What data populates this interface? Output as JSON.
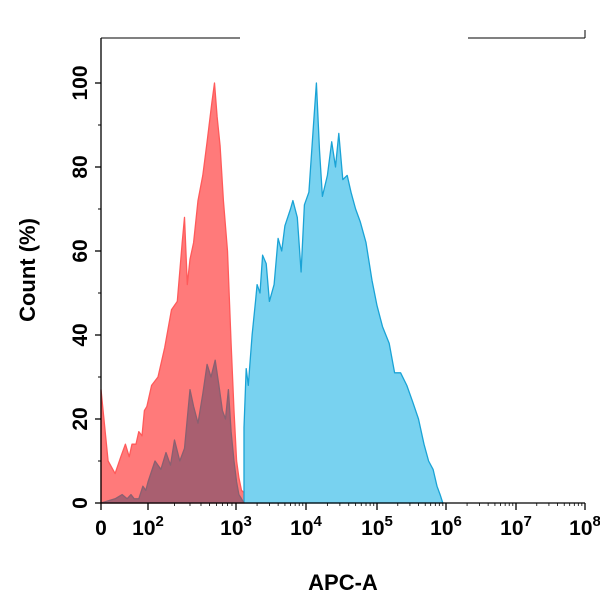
{
  "chart_data": {
    "type": "area",
    "title": "",
    "xlabel": "APC-A",
    "ylabel": "Count  (%)",
    "x_scale": "biexponential-log",
    "xlim": [
      0,
      100000000
    ],
    "ylim": [
      0,
      100
    ],
    "grid": false,
    "legend": "none",
    "y_ticks": [
      "0",
      "20",
      "40",
      "60",
      "80",
      "100"
    ],
    "x_ticks": [
      {
        "value": 0,
        "base": "0",
        "exp": ""
      },
      {
        "value": 100,
        "base": "10",
        "exp": "2"
      },
      {
        "value": 1000,
        "base": "10",
        "exp": "3"
      },
      {
        "value": 10000,
        "base": "10",
        "exp": "4"
      },
      {
        "value": 100000,
        "base": "10",
        "exp": "5"
      },
      {
        "value": 1000000,
        "base": "10",
        "exp": "6"
      },
      {
        "value": 10000000,
        "base": "10",
        "exp": "7"
      },
      {
        "value": 100000000,
        "base": "10",
        "exp": "8"
      }
    ],
    "series": [
      {
        "color": "#ff5a5a",
        "fill": "#ff7a7a",
        "points": [
          [
            0,
            27
          ],
          [
            1,
            10
          ],
          [
            3,
            7
          ],
          [
            6,
            11
          ],
          [
            10,
            14
          ],
          [
            15,
            11
          ],
          [
            20,
            14
          ],
          [
            30,
            14
          ],
          [
            40,
            17
          ],
          [
            55,
            16
          ],
          [
            70,
            22
          ],
          [
            90,
            23
          ],
          [
            110,
            28
          ],
          [
            130,
            30
          ],
          [
            155,
            37
          ],
          [
            185,
            46
          ],
          [
            215,
            48
          ],
          [
            245,
            62
          ],
          [
            260,
            68
          ],
          [
            280,
            52
          ],
          [
            300,
            58
          ],
          [
            330,
            62
          ],
          [
            370,
            72
          ],
          [
            420,
            78
          ],
          [
            470,
            86
          ],
          [
            530,
            95
          ],
          [
            570,
            100
          ],
          [
            610,
            92
          ],
          [
            660,
            85
          ],
          [
            720,
            72
          ],
          [
            800,
            60
          ],
          [
            880,
            38
          ],
          [
            950,
            22
          ],
          [
            1020,
            10
          ],
          [
            1100,
            6
          ],
          [
            1200,
            3
          ],
          [
            1400,
            2
          ],
          [
            1700,
            1
          ],
          [
            2100,
            0.5
          ],
          [
            2600,
            0.8
          ],
          [
            3000,
            0.2
          ],
          [
            4000,
            0
          ],
          [
            5500,
            1
          ],
          [
            7000,
            0
          ]
        ]
      },
      {
        "color": "#1aa3d6",
        "fill": "#78d2f0",
        "points": [
          [
            1300,
            18
          ],
          [
            1400,
            32
          ],
          [
            1500,
            28
          ],
          [
            1700,
            40
          ],
          [
            1900,
            48
          ],
          [
            2000,
            52
          ],
          [
            2200,
            50
          ],
          [
            2400,
            59
          ],
          [
            2700,
            57
          ],
          [
            3000,
            48
          ],
          [
            3500,
            52
          ],
          [
            4000,
            63
          ],
          [
            4500,
            60
          ],
          [
            5000,
            66
          ],
          [
            6000,
            70
          ],
          [
            6500,
            72
          ],
          [
            7500,
            68
          ],
          [
            8500,
            55
          ],
          [
            9500,
            71
          ],
          [
            11000,
            74
          ],
          [
            12500,
            88
          ],
          [
            14000,
            100
          ],
          [
            15500,
            84
          ],
          [
            17000,
            73
          ],
          [
            20000,
            78
          ],
          [
            23000,
            86
          ],
          [
            26000,
            80
          ],
          [
            29000,
            88
          ],
          [
            33000,
            77
          ],
          [
            38000,
            78
          ],
          [
            43000,
            74
          ],
          [
            50000,
            70
          ],
          [
            58000,
            67
          ],
          [
            70000,
            62
          ],
          [
            85000,
            53
          ],
          [
            100000,
            47
          ],
          [
            120000,
            42
          ],
          [
            150000,
            38
          ],
          [
            180000,
            31
          ],
          [
            220000,
            31
          ],
          [
            270000,
            28
          ],
          [
            330000,
            24
          ],
          [
            400000,
            20
          ],
          [
            480000,
            14
          ],
          [
            560000,
            10
          ],
          [
            650000,
            8
          ],
          [
            740000,
            4
          ],
          [
            820000,
            2
          ],
          [
            900000,
            0
          ]
        ]
      },
      {
        "color": "#8a6070",
        "fill": "#9a5a6e",
        "points": [
          [
            0,
            0
          ],
          [
            3,
            1
          ],
          [
            7,
            2
          ],
          [
            12,
            1
          ],
          [
            18,
            2
          ],
          [
            25,
            1
          ],
          [
            40,
            1
          ],
          [
            60,
            4
          ],
          [
            80,
            3
          ],
          [
            100,
            5
          ],
          [
            120,
            10
          ],
          [
            140,
            8
          ],
          [
            160,
            12
          ],
          [
            180,
            9
          ],
          [
            200,
            15
          ],
          [
            230,
            10
          ],
          [
            260,
            13
          ],
          [
            300,
            27
          ],
          [
            330,
            23
          ],
          [
            370,
            19
          ],
          [
            420,
            26
          ],
          [
            470,
            33
          ],
          [
            520,
            30
          ],
          [
            580,
            34
          ],
          [
            640,
            28
          ],
          [
            700,
            22
          ],
          [
            760,
            20
          ],
          [
            820,
            27
          ],
          [
            880,
            17
          ],
          [
            950,
            10
          ],
          [
            1020,
            5
          ],
          [
            1100,
            2
          ],
          [
            1300,
            0
          ]
        ]
      }
    ]
  }
}
